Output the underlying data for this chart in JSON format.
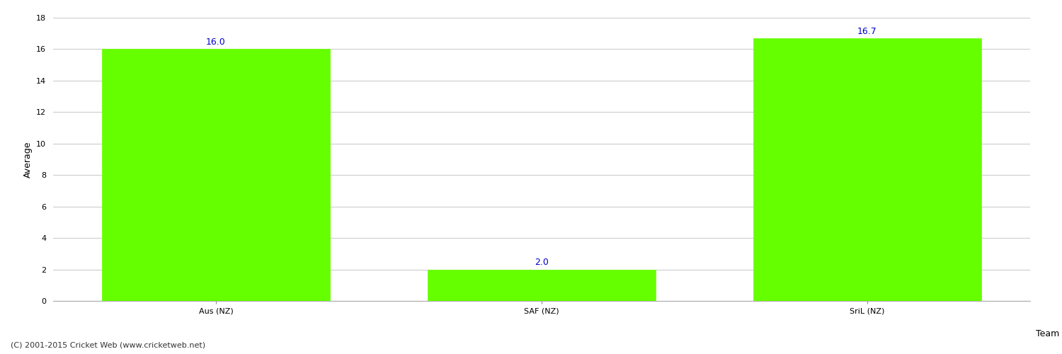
{
  "categories": [
    "Aus (NZ)",
    "SAF (NZ)",
    "SriL (NZ)"
  ],
  "values": [
    16.0,
    2.0,
    16.7
  ],
  "bar_color": "#66ff00",
  "bar_edge_color": "#66ff00",
  "xlabel": "Team",
  "ylabel": "Average",
  "ylim": [
    0,
    18
  ],
  "yticks": [
    0,
    2,
    4,
    6,
    8,
    10,
    12,
    14,
    16,
    18
  ],
  "label_color": "#0000cc",
  "label_fontsize": 9,
  "axis_label_fontsize": 9,
  "tick_fontsize": 8,
  "grid_color": "#cccccc",
  "bg_color": "#ffffff",
  "copyright_text": "(C) 2001-2015 Cricket Web (www.cricketweb.net)",
  "copyright_fontsize": 8,
  "bar_width": 0.7
}
